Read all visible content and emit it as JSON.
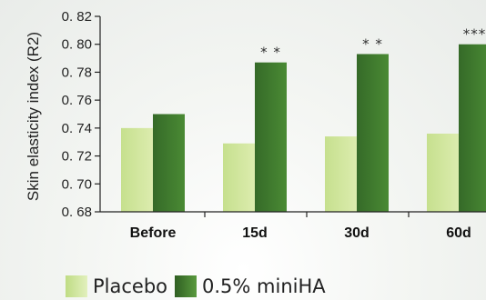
{
  "chart_data": {
    "type": "bar",
    "ylabel": "Skin elasticity index (R2)",
    "xlabel": "",
    "categories": [
      "Before",
      "15d",
      "30d",
      "60d"
    ],
    "ylim": [
      0.68,
      0.82
    ],
    "yticks": [
      "0. 68",
      "0. 70",
      "0. 72",
      "0. 74",
      "0. 76",
      "0. 78",
      "0. 80",
      "0. 82"
    ],
    "series": [
      {
        "name": "Placebo",
        "color": "#cfe5a0",
        "values": [
          0.74,
          0.729,
          0.734,
          0.736
        ]
      },
      {
        "name": "0.5% miniHA",
        "color": "#3b6e2e",
        "values": [
          0.75,
          0.787,
          0.793,
          0.8
        ]
      }
    ],
    "annotations": [
      "",
      "* *",
      "* *",
      "***"
    ],
    "legend_position": "bottom",
    "grid": false
  }
}
